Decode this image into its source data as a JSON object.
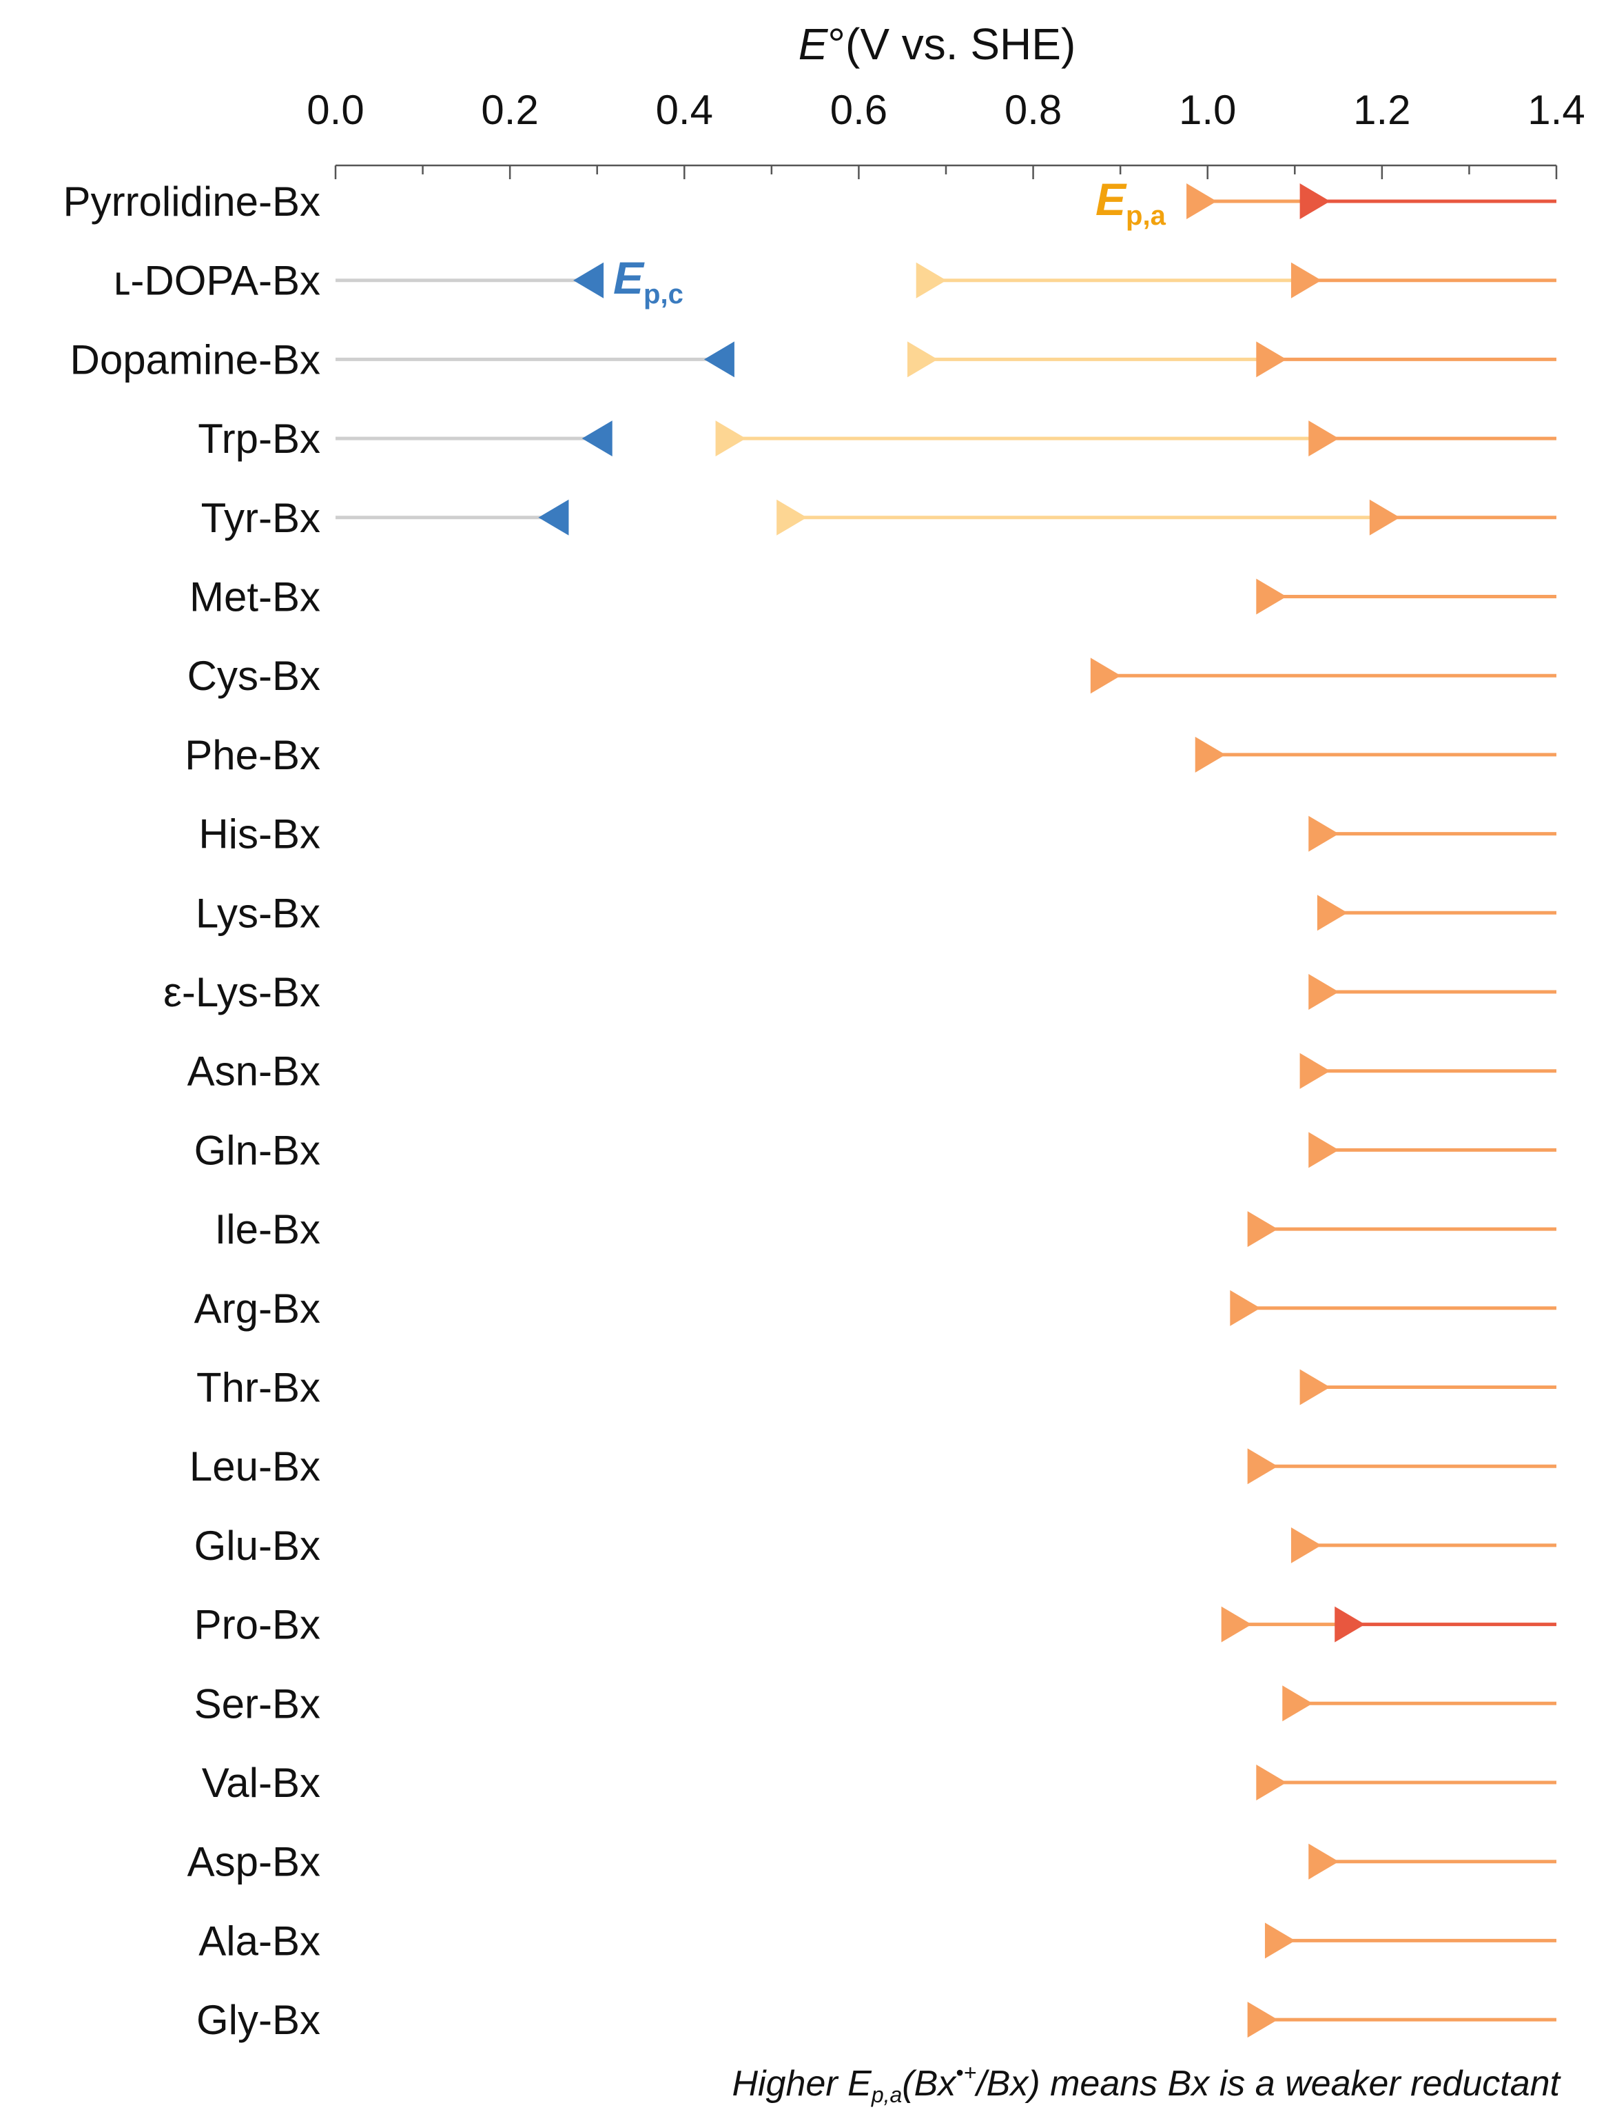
{
  "chart_data": {
    "type": "scatter",
    "title_italic": "E",
    "title_rest": "°(V vs. SHE)",
    "xlim": [
      0.0,
      1.4
    ],
    "major_ticks": [
      0.0,
      0.2,
      0.4,
      0.6,
      0.8,
      1.0,
      1.2,
      1.4
    ],
    "major_tick_labels": [
      "0.0",
      "0.2",
      "0.4",
      "0.6",
      "0.8",
      "1.0",
      "1.2",
      "1.4"
    ],
    "minor_ticks": [
      0.1,
      0.3,
      0.5,
      0.7,
      0.9,
      1.1,
      1.3
    ],
    "axis_position": "top",
    "colors": {
      "cathodic": "#3a7bbf",
      "cathodic_line": "#cfcfcf",
      "anodic_light": "#fdd693",
      "anodic": "#f7a05e",
      "anodic_dark": "#e8573f",
      "ep_a_label": "#f2a20d",
      "ep_c_label": "#3a7bbf"
    },
    "annotations": {
      "ep_a": {
        "main": "E",
        "sub": "p,a"
      },
      "ep_c": {
        "main": "E",
        "sub": "p,c"
      }
    },
    "footer": {
      "part1": "Higher E",
      "sub": "p,a",
      "part2": "(Bx",
      "sup": "•+",
      "part3": "/Bx) means Bx is a weaker reductant"
    },
    "rows": [
      {
        "label": "Pyrrolidine-Bx",
        "anodic": [
          0.99,
          1.12
        ],
        "anodic_colors": [
          "anodic",
          "anodic_dark"
        ]
      },
      {
        "label": "ʟ-DOPA-Bx",
        "cathodic": 0.29,
        "anodic": [
          0.68,
          1.11
        ],
        "anodic_colors": [
          "anodic_light",
          "anodic"
        ]
      },
      {
        "label": "Dopamine-Bx",
        "cathodic": 0.44,
        "anodic": [
          0.67,
          1.07
        ],
        "anodic_colors": [
          "anodic_light",
          "anodic"
        ]
      },
      {
        "label": "Trp-Bx",
        "cathodic": 0.3,
        "anodic": [
          0.45,
          1.13
        ],
        "anodic_colors": [
          "anodic_light",
          "anodic"
        ]
      },
      {
        "label": "Tyr-Bx",
        "cathodic": 0.25,
        "anodic": [
          0.52,
          1.2
        ],
        "anodic_colors": [
          "anodic_light",
          "anodic"
        ]
      },
      {
        "label": "Met-Bx",
        "anodic": [
          1.07
        ],
        "anodic_colors": [
          "anodic"
        ]
      },
      {
        "label": "Cys-Bx",
        "anodic": [
          0.88
        ],
        "anodic_colors": [
          "anodic"
        ]
      },
      {
        "label": "Phe-Bx",
        "anodic": [
          1.0
        ],
        "anodic_colors": [
          "anodic"
        ]
      },
      {
        "label": "His-Bx",
        "anodic": [
          1.13
        ],
        "anodic_colors": [
          "anodic"
        ]
      },
      {
        "label": "Lys-Bx",
        "anodic": [
          1.14
        ],
        "anodic_colors": [
          "anodic"
        ]
      },
      {
        "label": "ε-Lys-Bx",
        "anodic": [
          1.13
        ],
        "anodic_colors": [
          "anodic"
        ]
      },
      {
        "label": "Asn-Bx",
        "anodic": [
          1.12
        ],
        "anodic_colors": [
          "anodic"
        ]
      },
      {
        "label": "Gln-Bx",
        "anodic": [
          1.13
        ],
        "anodic_colors": [
          "anodic"
        ]
      },
      {
        "label": "Ile-Bx",
        "anodic": [
          1.06
        ],
        "anodic_colors": [
          "anodic"
        ]
      },
      {
        "label": "Arg-Bx",
        "anodic": [
          1.04
        ],
        "anodic_colors": [
          "anodic"
        ]
      },
      {
        "label": "Thr-Bx",
        "anodic": [
          1.12
        ],
        "anodic_colors": [
          "anodic"
        ]
      },
      {
        "label": "Leu-Bx",
        "anodic": [
          1.06
        ],
        "anodic_colors": [
          "anodic"
        ]
      },
      {
        "label": "Glu-Bx",
        "anodic": [
          1.11
        ],
        "anodic_colors": [
          "anodic"
        ]
      },
      {
        "label": "Pro-Bx",
        "anodic": [
          1.03,
          1.16
        ],
        "anodic_colors": [
          "anodic",
          "anodic_dark"
        ]
      },
      {
        "label": "Ser-Bx",
        "anodic": [
          1.1
        ],
        "anodic_colors": [
          "anodic"
        ]
      },
      {
        "label": "Val-Bx",
        "anodic": [
          1.07
        ],
        "anodic_colors": [
          "anodic"
        ]
      },
      {
        "label": "Asp-Bx",
        "anodic": [
          1.13
        ],
        "anodic_colors": [
          "anodic"
        ]
      },
      {
        "label": "Ala-Bx",
        "anodic": [
          1.08
        ],
        "anodic_colors": [
          "anodic"
        ]
      },
      {
        "label": "Gly-Bx",
        "anodic": [
          1.06
        ],
        "anodic_colors": [
          "anodic"
        ]
      }
    ]
  }
}
